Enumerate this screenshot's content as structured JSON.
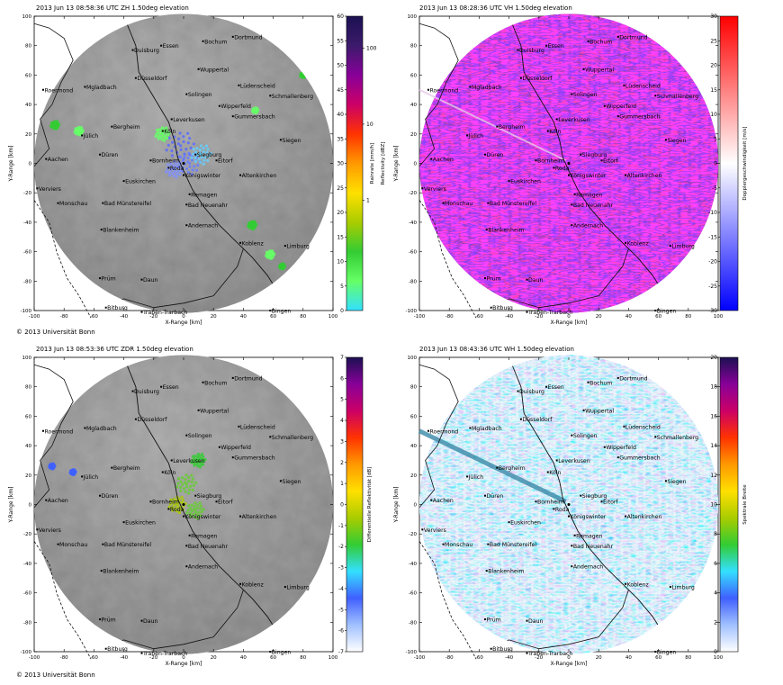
{
  "copyright": "© 2013 Universität Bonn",
  "cities": [
    {
      "name": "Duisburg",
      "x": -34,
      "y": 77
    },
    {
      "name": "Essen",
      "x": -15,
      "y": 80
    },
    {
      "name": "Bochum",
      "x": 13,
      "y": 83
    },
    {
      "name": "Dortmund",
      "x": 33,
      "y": 86
    },
    {
      "name": "Wuppertal",
      "x": 10,
      "y": 64
    },
    {
      "name": "Düsseldorf",
      "x": -32,
      "y": 58
    },
    {
      "name": "Lüdenscheid",
      "x": 37,
      "y": 53
    },
    {
      "name": "Mgladbach",
      "x": -66,
      "y": 52
    },
    {
      "name": "Schmallenberg",
      "x": 58,
      "y": 46
    },
    {
      "name": "Roermond",
      "x": -94,
      "y": 50
    },
    {
      "name": "Solingen",
      "x": 2,
      "y": 47
    },
    {
      "name": "Wipperfeld",
      "x": 24,
      "y": 39
    },
    {
      "name": "Gummersbach",
      "x": 33,
      "y": 32
    },
    {
      "name": "Leverkusen",
      "x": -8,
      "y": 30
    },
    {
      "name": "Bergheim",
      "x": -48,
      "y": 25
    },
    {
      "name": "Köln",
      "x": -14,
      "y": 22
    },
    {
      "name": "Jülich",
      "x": -68,
      "y": 19
    },
    {
      "name": "Siegen",
      "x": 65,
      "y": 16
    },
    {
      "name": "Düren",
      "x": -56,
      "y": 6
    },
    {
      "name": "Aachen",
      "x": -92,
      "y": 3
    },
    {
      "name": "Bornheim",
      "x": -22,
      "y": 2
    },
    {
      "name": "Siegburg",
      "x": 8,
      "y": 6
    },
    {
      "name": "Eitorf",
      "x": 22,
      "y": 2
    },
    {
      "name": "Roda",
      "x": -10,
      "y": -3
    },
    {
      "name": "Altenkirchen",
      "x": 38,
      "y": -8
    },
    {
      "name": "Königswinter",
      "x": 0,
      "y": -8
    },
    {
      "name": "Euskirchen",
      "x": -40,
      "y": -12
    },
    {
      "name": "Verviers",
      "x": -98,
      "y": -17
    },
    {
      "name": "Monschau",
      "x": -84,
      "y": -27
    },
    {
      "name": "Bad Münstereifel",
      "x": -54,
      "y": -27
    },
    {
      "name": "Remagen",
      "x": 4,
      "y": -21
    },
    {
      "name": "Bad Neuenahr",
      "x": 2,
      "y": -28
    },
    {
      "name": "Blankenheim",
      "x": -55,
      "y": -45
    },
    {
      "name": "Andernach",
      "x": 2,
      "y": -42
    },
    {
      "name": "Koblenz",
      "x": 38,
      "y": -54
    },
    {
      "name": "Limburg",
      "x": 68,
      "y": -56
    },
    {
      "name": "Prüm",
      "x": -56,
      "y": -78
    },
    {
      "name": "Daun",
      "x": -28,
      "y": -79
    },
    {
      "name": "Bitburg",
      "x": -52,
      "y": -98
    },
    {
      "name": "Traben-Trarbach",
      "x": -28,
      "y": -101
    },
    {
      "name": "Bingen",
      "x": 58,
      "y": -100
    }
  ],
  "panels": [
    {
      "id": "zh",
      "header": "2013 Jun 13 08:58:36 UTC   ZH      1.50deg elevation",
      "cb_title": "Reflectivity [dBZ]",
      "cb_title2": "Rainrate [mm/h]",
      "chart_data": {
        "type": "heatmap",
        "title": "2013 Jun 13 08:58:36 UTC ZH 1.50deg elevation",
        "xlabel": "X-Range [km]",
        "ylabel": "Y-Range [km]",
        "xlim": [
          -100,
          100
        ],
        "ylim": [
          -100,
          100
        ],
        "xticks": [
          "-100",
          "-80",
          "-60",
          "-40",
          "-20",
          "0",
          "20",
          "40",
          "60",
          "80",
          "100"
        ],
        "yticks": [
          "-100",
          "-80",
          "-60",
          "-40",
          "-20",
          "0",
          "20",
          "40",
          "60",
          "80",
          "100"
        ],
        "colorbar": {
          "label": "Reflectivity [dBZ]",
          "min": 0,
          "max": 60,
          "ticks": [
            "0",
            "5",
            "10",
            "15",
            "20",
            "25",
            "30",
            "35",
            "40",
            "45",
            "50",
            "55",
            "60"
          ],
          "secondary_label": "Rainrate [mm/h]",
          "secondary_ticks": [
            {
              "value": "100",
              "at": 53.5
            },
            {
              "value": "10",
              "at": 38
            },
            {
              "value": "1",
              "at": 22.5
            }
          ],
          "colors": [
            "#33e0ff",
            "#66ff66",
            "#33cc33",
            "#aacc00",
            "#ffe000",
            "#ff9900",
            "#ff3300",
            "#cc0066",
            "#880099",
            "#3c1a6b",
            "#1b1152"
          ]
        },
        "background": "terrain-grayscale"
      }
    },
    {
      "id": "vh",
      "header": "2013 Jun 13 08:28:36 UTC   VH      1.50deg elevation",
      "cb_title": "Dopplergeschwindigkeit [m/s]",
      "chart_data": {
        "type": "heatmap",
        "title": "2013 Jun 13 08:28:36 UTC VH 1.50deg elevation",
        "xlabel": "X-Range [km]",
        "ylabel": "Y-Range [km]",
        "xlim": [
          -100,
          100
        ],
        "ylim": [
          -100,
          100
        ],
        "xticks": [
          "-100",
          "-80",
          "-60",
          "-40",
          "-20",
          "0",
          "20",
          "40",
          "60",
          "80",
          "100"
        ],
        "yticks": [
          "-100",
          "-80",
          "-60",
          "-40",
          "-20",
          "0",
          "20",
          "40",
          "60",
          "80",
          "100"
        ],
        "colorbar": {
          "label": "Dopplergeschwindigkeit [m/s]",
          "min": -30,
          "max": 30,
          "ticks": [
            "-30",
            "-25",
            "-20",
            "-15",
            "-10",
            "-5",
            "0",
            "5",
            "10",
            "15",
            "20",
            "25",
            "30"
          ],
          "colors": [
            "#0000ff",
            "#4040ff",
            "#8080ff",
            "#c0c0ff",
            "#ffffff",
            "#ffc0c0",
            "#ff8080",
            "#ff4040",
            "#ff0000"
          ]
        },
        "background": "velocity-noise"
      }
    },
    {
      "id": "zdr",
      "header": "2013 Jun 13 08:53:36 UTC   ZDR      1.50deg elevation",
      "cb_title": "Differentielle Reflektivität [dB]",
      "chart_data": {
        "type": "heatmap",
        "title": "2013 Jun 13 08:53:36 UTC ZDR 1.50deg elevation",
        "xlabel": "X-Range [km]",
        "ylabel": "Y-Range [km]",
        "xlim": [
          -100,
          100
        ],
        "ylim": [
          -100,
          100
        ],
        "xticks": [
          "-100",
          "-80",
          "-60",
          "-40",
          "-20",
          "0",
          "20",
          "40",
          "60",
          "80",
          "100"
        ],
        "yticks": [
          "-100",
          "-80",
          "-60",
          "-40",
          "-20",
          "0",
          "20",
          "40",
          "60",
          "80",
          "100"
        ],
        "colorbar": {
          "label": "Differentielle Reflektivität [dB]",
          "min": -7,
          "max": 7,
          "ticks": [
            "-7",
            "-6",
            "-5",
            "-4",
            "-3",
            "-2",
            "-1",
            "0",
            "1",
            "2",
            "3",
            "4",
            "5",
            "6",
            "7"
          ],
          "colors": [
            "#ffffff",
            "#a0c0ff",
            "#4060ff",
            "#33e0ff",
            "#33cc33",
            "#aacc00",
            "#ffe000",
            "#ff9900",
            "#ff3300",
            "#cc0066",
            "#880099",
            "#1b1152"
          ]
        },
        "background": "terrain-grayscale"
      }
    },
    {
      "id": "wh",
      "header": "2013 Jun 13 08:43:36 UTC   WH      1.50deg elevation",
      "cb_title": "Spektrale Breite",
      "chart_data": {
        "type": "heatmap",
        "title": "2013 Jun 13 08:43:36 UTC WH 1.50deg elevation",
        "xlabel": "X-Range [km]",
        "ylabel": "Y-Range [km]",
        "xlim": [
          -100,
          100
        ],
        "ylim": [
          -100,
          100
        ],
        "xticks": [
          "-100",
          "-80",
          "-60",
          "-40",
          "-20",
          "0",
          "20",
          "40",
          "60",
          "80",
          "100"
        ],
        "yticks": [
          "-100",
          "-80",
          "-60",
          "-40",
          "-20",
          "0",
          "20",
          "40",
          "60",
          "80",
          "100"
        ],
        "colorbar": {
          "label": "Spektrale Breite",
          "min": 0,
          "max": 20,
          "ticks": [
            "0",
            "2",
            "4",
            "6",
            "8",
            "10",
            "12",
            "14",
            "16",
            "18",
            "20"
          ],
          "colors": [
            "#ffffff",
            "#a0c0ff",
            "#4060ff",
            "#33e0ff",
            "#33cc33",
            "#aacc00",
            "#ffe000",
            "#ff9900",
            "#ff3300",
            "#cc0066",
            "#880099",
            "#1b1152"
          ]
        },
        "background": "width-noise"
      }
    }
  ]
}
